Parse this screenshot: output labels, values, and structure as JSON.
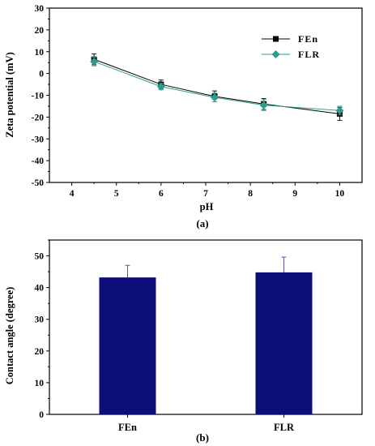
{
  "chart_data": [
    {
      "type": "line",
      "caption": "(a)",
      "xlabel": "pH",
      "ylabel": "Zeta potential (mV)",
      "xlim": [
        3.5,
        10.5
      ],
      "ylim": [
        -50,
        30
      ],
      "xticks": [
        "4",
        "5",
        "6",
        "7",
        "8",
        "9",
        "10"
      ],
      "yticks": [
        "30",
        "20",
        "10",
        "0",
        "-10",
        "-20",
        "-30",
        "-40",
        "-50"
      ],
      "grid": false,
      "legend_position": "top-right",
      "series": [
        {
          "name": "FEn",
          "color": "#000000",
          "marker": "square",
          "x": [
            4.5,
            6.0,
            7.2,
            8.3,
            10.0
          ],
          "y": [
            6.5,
            -5.0,
            -10.5,
            -14.0,
            -18.5
          ],
          "err": [
            2.5,
            2.0,
            2.5,
            2.5,
            3.0
          ]
        },
        {
          "name": "FLR",
          "color": "#2e9b8f",
          "marker": "diamond",
          "x": [
            4.5,
            6.0,
            7.2,
            8.3,
            10.0
          ],
          "y": [
            5.5,
            -6.0,
            -11.0,
            -14.5,
            -17.0
          ],
          "err": [
            2.0,
            1.5,
            2.0,
            2.5,
            2.0
          ]
        }
      ]
    },
    {
      "type": "bar",
      "caption": "(b)",
      "xlabel": "",
      "ylabel": "Contact angle (degree)",
      "categories": [
        "FEn",
        "FLR"
      ],
      "values": [
        43.2,
        44.8
      ],
      "err": [
        3.8,
        4.8
      ],
      "ylim": [
        0,
        55
      ],
      "yticks": [
        "0",
        "10",
        "20",
        "30",
        "40",
        "50"
      ],
      "bar_color": "#0d0d78",
      "grid": false
    }
  ]
}
